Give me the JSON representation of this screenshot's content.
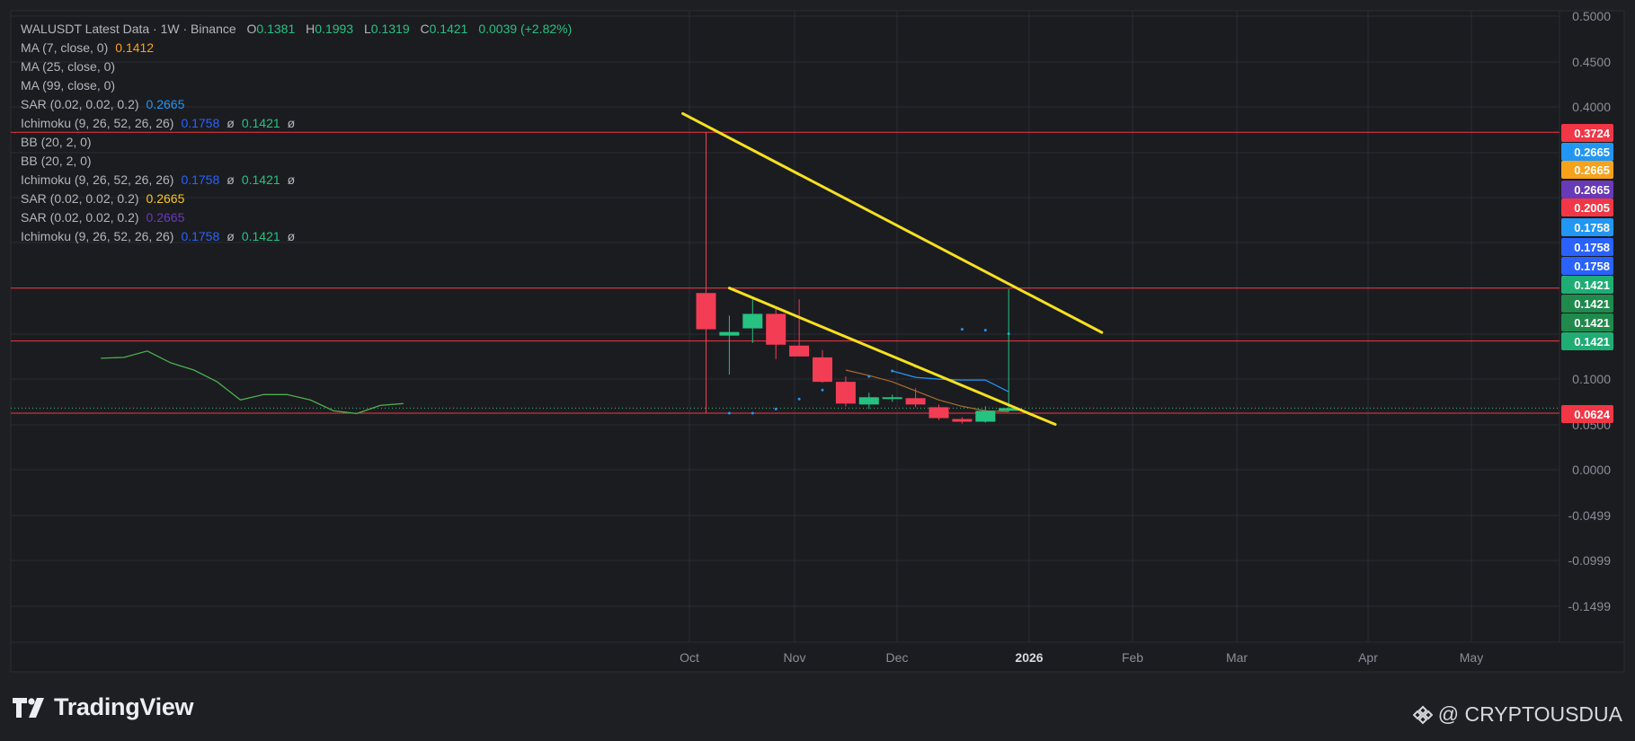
{
  "header": {
    "symbol": "WALUSDT Latest Data · 1W · Binance",
    "o_label": "O",
    "o": "0.1381",
    "h_label": "H",
    "h": "0.1993",
    "l_label": "L",
    "l": "0.1319",
    "c_label": "C",
    "c": "0.1421",
    "change": "0.0039 (+2.82%)"
  },
  "indicators": [
    {
      "label": "MA (7, close, 0)",
      "values": [
        "0.1412"
      ],
      "color": "#f7a21b"
    },
    {
      "label": "MA (25, close, 0)",
      "values": []
    },
    {
      "label": "MA (99, close, 0)",
      "values": []
    },
    {
      "label": "SAR (0.02, 0.02, 0.2)",
      "values": [
        "0.2665"
      ],
      "color": "#2196f3"
    },
    {
      "label": "Ichimoku (9, 26, 52, 26, 26)",
      "values": [
        "0.1758",
        "ø",
        "0.1421",
        "ø"
      ],
      "color": "#2962ff"
    },
    {
      "label": "BB (20, 2, 0)",
      "values": []
    },
    {
      "label": "BB (20, 2, 0)",
      "values": []
    },
    {
      "label": "Ichimoku (9, 26, 52, 26, 26)",
      "values": [
        "0.1758",
        "ø",
        "0.1421",
        "ø"
      ],
      "color": "#2962ff"
    },
    {
      "label": "SAR (0.02, 0.02, 0.2)",
      "values": [
        "0.2665"
      ],
      "color": "#f7c71b"
    },
    {
      "label": "SAR (0.02, 0.02, 0.2)",
      "values": [
        "0.2665"
      ],
      "color": "#673ab7"
    },
    {
      "label": "Ichimoku (9, 26, 52, 26, 26)",
      "values": [
        "0.1758",
        "ø",
        "0.1421",
        "ø"
      ],
      "color": "#2962ff"
    }
  ],
  "price_axis": [
    "0.5000",
    "0.4500",
    "0.4000",
    "0.1000",
    "0.0500",
    "0.0000",
    "-0.0499",
    "-0.0999",
    "-0.1499"
  ],
  "time_axis": [
    "Oct",
    "Nov",
    "Dec",
    "2026",
    "Feb",
    "Mar",
    "Apr",
    "May"
  ],
  "price_tags": [
    {
      "text": "0.3724",
      "color": "#f23645"
    },
    {
      "text": "0.2665",
      "color": "#2196f3"
    },
    {
      "text": "0.2665",
      "color": "#f7a21b"
    },
    {
      "text": "0.2665",
      "color": "#673ab7"
    },
    {
      "text": "0.2005",
      "color": "#f23645"
    },
    {
      "text": "0.1758",
      "color": "#2196f3"
    },
    {
      "text": "0.1758",
      "color": "#2962ff"
    },
    {
      "text": "0.1758",
      "color": "#2962ff"
    },
    {
      "text": "0.1421",
      "color": "#1fad74"
    },
    {
      "text": "0.1421",
      "color": "#1f8a4c"
    },
    {
      "text": "0.1421",
      "color": "#1f8a4c"
    },
    {
      "text": "0.1421",
      "color": "#1fad74"
    },
    {
      "text": "0.0624",
      "color": "#f23645"
    }
  ],
  "brand": {
    "name": "TradingView"
  },
  "credit": {
    "text": "@ CRYPTOUSDUA"
  },
  "chart_data": {
    "type": "candlestick",
    "title": "WALUSDT Latest Data · 1W · Binance",
    "x_axis_labels": [
      "Oct",
      "Nov",
      "Dec",
      "2026",
      "Feb",
      "Mar",
      "Apr",
      "May"
    ],
    "y_axis_labels": [
      "0.5000",
      "0.4500",
      "0.4000",
      "0.1000",
      "0.0500",
      "0.0000",
      "-0.0499",
      "-0.0999",
      "-0.1499"
    ],
    "candles": [
      {
        "t": "2025-10-06",
        "o": 0.195,
        "h": 0.3724,
        "l": 0.0624,
        "c": 0.155
      },
      {
        "t": "2025-10-13",
        "o": 0.148,
        "h": 0.17,
        "l": 0.105,
        "c": 0.152
      },
      {
        "t": "2025-10-20",
        "o": 0.156,
        "h": 0.188,
        "l": 0.14,
        "c": 0.172
      },
      {
        "t": "2025-10-27",
        "o": 0.172,
        "h": 0.178,
        "l": 0.122,
        "c": 0.138
      },
      {
        "t": "2025-11-03",
        "o": 0.137,
        "h": 0.188,
        "l": 0.128,
        "c": 0.125
      },
      {
        "t": "2025-11-10",
        "o": 0.124,
        "h": 0.132,
        "l": 0.096,
        "c": 0.097
      },
      {
        "t": "2025-11-17",
        "o": 0.097,
        "h": 0.103,
        "l": 0.07,
        "c": 0.073
      },
      {
        "t": "2025-11-24",
        "o": 0.072,
        "h": 0.085,
        "l": 0.067,
        "c": 0.08
      },
      {
        "t": "2025-12-01",
        "o": 0.079,
        "h": 0.083,
        "l": 0.075,
        "c": 0.08
      },
      {
        "t": "2025-12-08",
        "o": 0.079,
        "h": 0.09,
        "l": 0.069,
        "c": 0.072
      },
      {
        "t": "2025-12-15",
        "o": 0.069,
        "h": 0.072,
        "l": 0.055,
        "c": 0.057
      },
      {
        "t": "2025-12-22",
        "o": 0.056,
        "h": 0.058,
        "l": 0.051,
        "c": 0.053
      },
      {
        "t": "2025-12-29",
        "o": 0.053,
        "h": 0.07,
        "l": 0.052,
        "c": 0.065
      },
      {
        "t": "2026-01-05",
        "o": 0.065,
        "h": 0.1993,
        "l": 0.064,
        "c": 0.068
      }
    ],
    "last_candle_legend": {
      "o": 0.1381,
      "h": 0.1993,
      "l": 0.1319,
      "c": 0.1421
    },
    "ma7": [
      {
        "t": "2025-11-17",
        "v": 0.11
      },
      {
        "t": "2025-11-24",
        "v": 0.104
      },
      {
        "t": "2025-12-01",
        "v": 0.097
      },
      {
        "t": "2025-12-08",
        "v": 0.087
      },
      {
        "t": "2025-12-15",
        "v": 0.077
      },
      {
        "t": "2025-12-22",
        "v": 0.07
      },
      {
        "t": "2025-12-29",
        "v": 0.065
      },
      {
        "t": "2026-01-05",
        "v": 0.064
      }
    ],
    "ichimoku_lagging": [
      {
        "t": "2025-04-07",
        "v": 0.123
      },
      {
        "t": "2025-04-14",
        "v": 0.124
      },
      {
        "t": "2025-04-21",
        "v": 0.131
      },
      {
        "t": "2025-04-28",
        "v": 0.118
      },
      {
        "t": "2025-05-05",
        "v": 0.11
      },
      {
        "t": "2025-05-12",
        "v": 0.097
      },
      {
        "t": "2025-05-19",
        "v": 0.077
      },
      {
        "t": "2025-05-26",
        "v": 0.083
      },
      {
        "t": "2025-06-02",
        "v": 0.083
      },
      {
        "t": "2025-06-09",
        "v": 0.077
      },
      {
        "t": "2025-06-16",
        "v": 0.065
      },
      {
        "t": "2025-06-23",
        "v": 0.062
      },
      {
        "t": "2025-06-30",
        "v": 0.071
      },
      {
        "t": "2025-07-07",
        "v": 0.073
      }
    ],
    "ichimoku_line": [
      {
        "t": "2025-12-01",
        "v": 0.109
      },
      {
        "t": "2025-12-08",
        "v": 0.102
      },
      {
        "t": "2025-12-15",
        "v": 0.1
      },
      {
        "t": "2025-12-22",
        "v": 0.099
      },
      {
        "t": "2025-12-29",
        "v": 0.099
      },
      {
        "t": "2026-01-05",
        "v": 0.086
      }
    ],
    "sar_dots": [
      {
        "t": "2025-10-13",
        "v": 0.0624
      },
      {
        "t": "2025-10-20",
        "v": 0.0624
      },
      {
        "t": "2025-10-27",
        "v": 0.067
      },
      {
        "t": "2025-11-03",
        "v": 0.078
      },
      {
        "t": "2025-11-10",
        "v": 0.088
      },
      {
        "t": "2025-11-17",
        "v": 0.096
      },
      {
        "t": "2025-11-24",
        "v": 0.103
      },
      {
        "t": "2025-12-01",
        "v": 0.109
      },
      {
        "t": "2025-12-08",
        "v": 0.114
      },
      {
        "t": "2025-12-22",
        "v": 0.155
      },
      {
        "t": "2025-12-29",
        "v": 0.154
      },
      {
        "t": "2026-01-05",
        "v": 0.15
      }
    ],
    "horizontal_lines": [
      0.3724,
      0.2005,
      0.1421,
      0.0624
    ],
    "trendlines": [
      {
        "name": "upper",
        "from": {
          "t": "2025-09-29",
          "v": 0.393
        },
        "to": {
          "t": "2026-02-02",
          "v": 0.1515
        }
      },
      {
        "name": "lower",
        "from": {
          "t": "2025-10-13",
          "v": 0.2005
        },
        "to": {
          "t": "2026-01-19",
          "v": 0.05
        }
      }
    ]
  }
}
